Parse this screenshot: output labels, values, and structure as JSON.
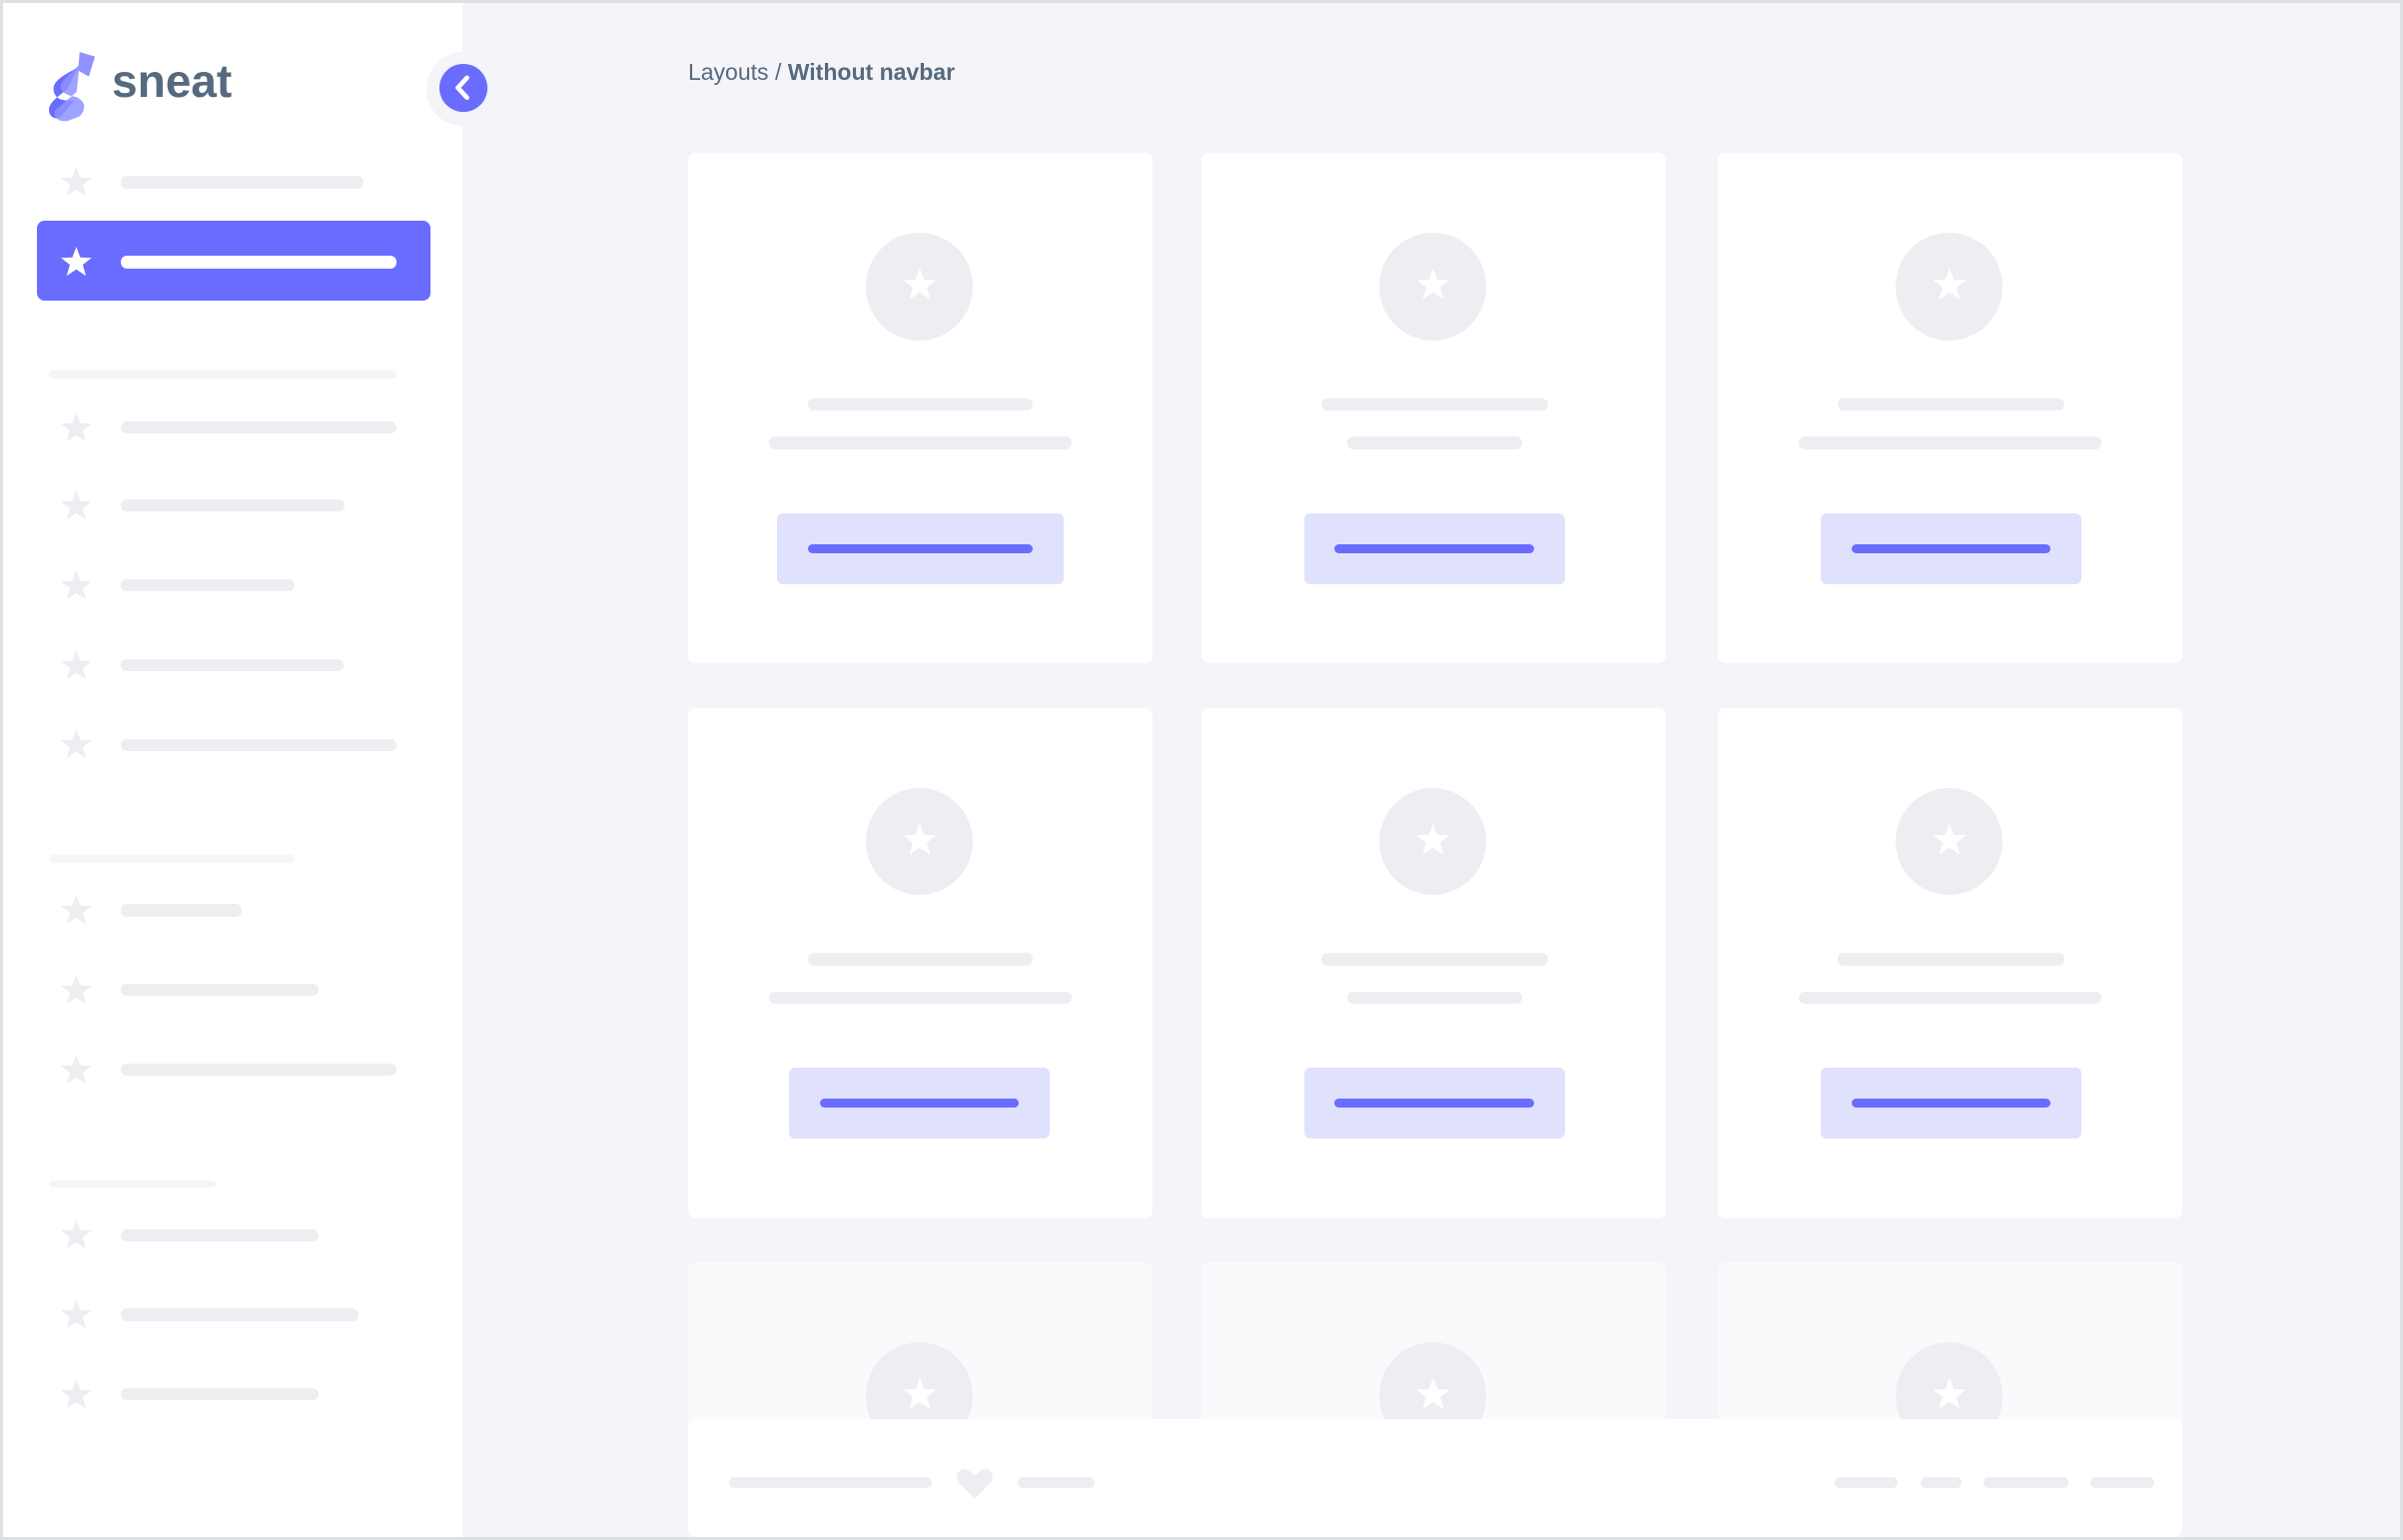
{
  "brand": {
    "name": "sneat",
    "accent": "#696cff",
    "text_color": "#566a7f"
  },
  "breadcrumb": {
    "parent": "Layouts",
    "separator": " / ",
    "current": "Without navbar"
  },
  "sidebar": {
    "toggle_icon": "chevron-left-icon",
    "active_index": 1,
    "item_icon": "star-icon"
  },
  "footer": {
    "icon": "heart-icon"
  }
}
